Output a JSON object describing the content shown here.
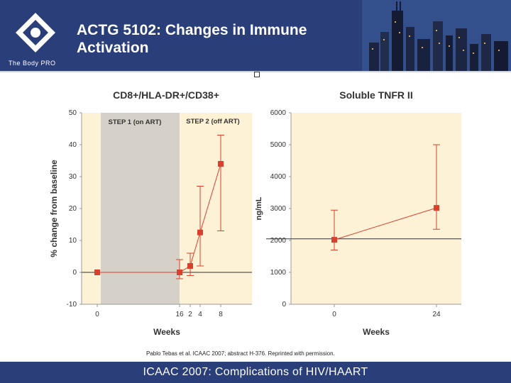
{
  "header": {
    "title": "ACTG 5102: Changes in Immune Activation",
    "logo_text": "The Body PRO",
    "background": "#2a3f7a"
  },
  "footer": {
    "text": "ICAAC 2007: Complications of HIV/HAART",
    "background": "#2a3f7a"
  },
  "citation": "Pablo Tebas et al. ICAAC 2007; abstract H-376. Reprinted with permission.",
  "colors": {
    "plot_bg": "#fdf2d6",
    "shade": "#d6d1c8",
    "marker": "#d9412e",
    "reference_line": "#333333"
  },
  "chart_data": [
    {
      "type": "line",
      "title": "CD8+/HLA-DR+/CD38+",
      "xlabel": "Weeks",
      "ylabel": "% change from baseline",
      "ylim": [
        -10,
        50
      ],
      "yticks": [
        "50",
        "40",
        "30",
        "20",
        "10",
        "0",
        "-10"
      ],
      "xtick_labels": [
        "0",
        "16",
        "2",
        "4",
        "8"
      ],
      "grid": false,
      "reference_y": 0,
      "regions": [
        {
          "label": "STEP 1 (on ART)",
          "shaded": true
        },
        {
          "label": "STEP 2 (off ART)",
          "shaded": false
        }
      ],
      "series": [
        {
          "points": [
            {
              "x": "0",
              "y": 0,
              "low": 0,
              "high": 0
            },
            {
              "x": "16",
              "y": 0,
              "low": -2,
              "high": 4
            },
            {
              "x": "2",
              "y": 2,
              "low": -1,
              "high": 6
            },
            {
              "x": "4",
              "y": 12.5,
              "low": 2,
              "high": 27
            },
            {
              "x": "8",
              "y": 34,
              "low": 13,
              "high": 43
            }
          ]
        }
      ]
    },
    {
      "type": "line",
      "title": "Soluble TNFR II",
      "xlabel": "Weeks",
      "ylabel": "ng/mL",
      "ylim": [
        0,
        6000
      ],
      "yticks": [
        "6000",
        "5000",
        "4000",
        "3000",
        "2000",
        "1000",
        "0"
      ],
      "xtick_labels": [
        "0",
        "24"
      ],
      "grid": false,
      "reference_y": 2050,
      "series": [
        {
          "points": [
            {
              "x": "0",
              "y": 2020,
              "low": 1700,
              "high": 2950
            },
            {
              "x": "24",
              "y": 3020,
              "low": 2350,
              "high": 5000
            }
          ]
        }
      ]
    }
  ]
}
